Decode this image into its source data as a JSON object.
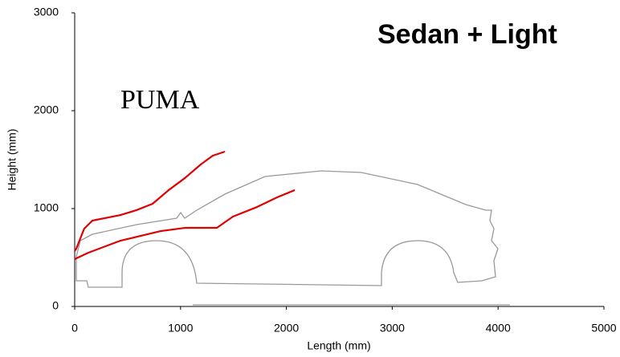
{
  "chart_data": {
    "type": "line",
    "title": "Sedan + Light",
    "annotation": "PUMA",
    "x_label": "Length (mm)",
    "y_label": "Height (mm)",
    "xlim": [
      0,
      5000
    ],
    "ylim": [
      0,
      3000
    ],
    "xticks": [
      0,
      1000,
      2000,
      3000,
      4000,
      5000
    ],
    "yticks": [
      0,
      1000,
      2000,
      3000
    ],
    "series": [
      {
        "color": "#e00000",
        "x": [
          0,
          15,
          90,
          167,
          432,
          584,
          736,
          888,
          1040,
          1191,
          1305,
          1419
        ],
        "values": [
          566,
          590,
          795,
          877,
          934,
          984,
          1049,
          1189,
          1311,
          1451,
          1541,
          1582
        ]
      },
      {
        "color": "#e00000",
        "x": [
          0,
          129,
          432,
          812,
          1040,
          1343,
          1495,
          1722,
          1912,
          2079
        ],
        "values": [
          484,
          549,
          672,
          770,
          803,
          803,
          918,
          1016,
          1115,
          1189
        ]
      }
    ]
  }
}
